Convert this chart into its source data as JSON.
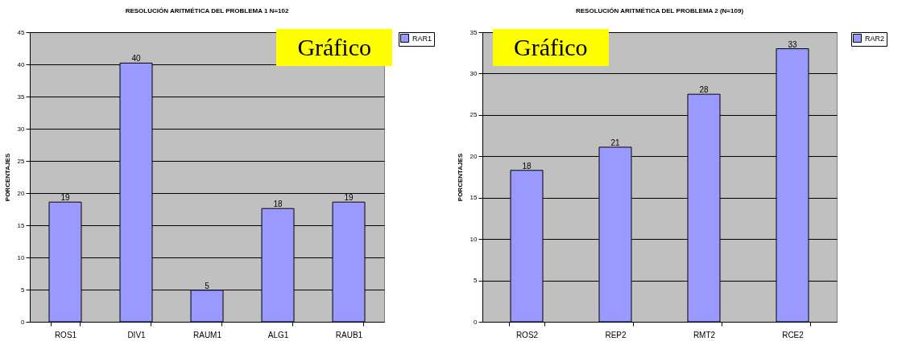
{
  "chart_data": [
    {
      "type": "bar",
      "title": "RESOLUCIÓN ARITMÉTICA DEL PROBLEMA 1 N=102",
      "ylabel": "PORCENTAJES",
      "categories": [
        "ROS1",
        "DIV1",
        "RAUM1",
        "ALG1",
        "RAUB1"
      ],
      "series": [
        {
          "name": "RAR1",
          "color": "#9999ff",
          "values": [
            18.6,
            40.2,
            4.9,
            17.6,
            18.6
          ],
          "value_labels": [
            "19",
            "40",
            "5",
            "18",
            "19"
          ]
        }
      ],
      "ylim": [
        0,
        45
      ],
      "yticks": [
        0,
        5,
        10,
        15,
        20,
        25,
        30,
        35,
        40,
        45
      ],
      "grid": "y",
      "legend": "right",
      "annotations": [
        "Gráfico"
      ]
    },
    {
      "type": "bar",
      "title": "RESOLUCIÓN ARITMÉTICA DEL PROBLEMA 2 (N=109)",
      "ylabel": "PORCENTAJES",
      "categories": [
        "ROS2",
        "REP2",
        "RMT2",
        "RCE2"
      ],
      "series": [
        {
          "name": "RAR2",
          "color": "#9999ff",
          "values": [
            18.3,
            21.1,
            27.5,
            33.0
          ],
          "value_labels": [
            "18",
            "21",
            "28",
            "33"
          ]
        }
      ],
      "ylim": [
        0,
        35
      ],
      "yticks": [
        0,
        5,
        10,
        15,
        20,
        25,
        30,
        35
      ],
      "grid": "y",
      "legend": "right",
      "annotations": [
        "Gráfico"
      ]
    }
  ]
}
